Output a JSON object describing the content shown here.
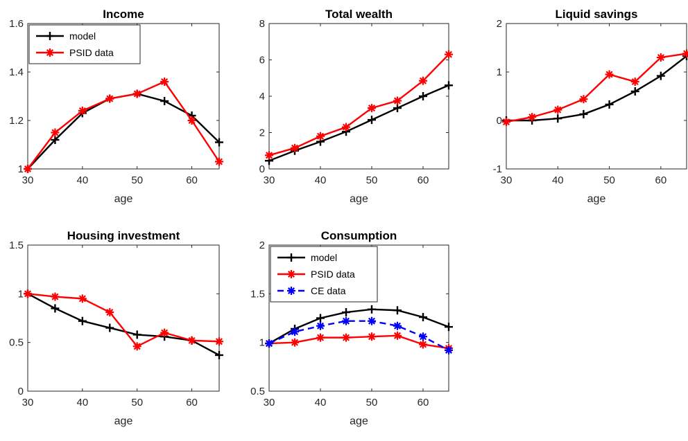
{
  "chart_data": [
    {
      "type": "line",
      "title": "Income",
      "xlabel": "age",
      "ylabel": "",
      "x": [
        30,
        35,
        40,
        45,
        50,
        55,
        60,
        65
      ],
      "xlim": [
        30,
        65
      ],
      "ylim": [
        1,
        1.6
      ],
      "xticks": [
        "30",
        "40",
        "50",
        "60"
      ],
      "yticks": [
        "1",
        "1.2",
        "1.4",
        "1.6"
      ],
      "legend": "top-left",
      "series": [
        {
          "name": "model",
          "color": "#000000",
          "marker": "plus",
          "dash": "solid",
          "values": [
            1.0,
            1.12,
            1.23,
            1.29,
            1.31,
            1.28,
            1.22,
            1.11
          ]
        },
        {
          "name": "PSID data",
          "color": "#ff0000",
          "marker": "star",
          "dash": "solid",
          "values": [
            1.0,
            1.15,
            1.24,
            1.29,
            1.31,
            1.36,
            1.2,
            1.03
          ]
        }
      ]
    },
    {
      "type": "line",
      "title": "Total wealth",
      "xlabel": "age",
      "ylabel": "",
      "x": [
        30,
        35,
        40,
        45,
        50,
        55,
        60,
        65
      ],
      "xlim": [
        30,
        65
      ],
      "ylim": [
        0,
        8
      ],
      "xticks": [
        "30",
        "40",
        "50",
        "60"
      ],
      "yticks": [
        "0",
        "2",
        "4",
        "6",
        "8"
      ],
      "legend": "none",
      "series": [
        {
          "color": "#000000",
          "marker": "plus",
          "dash": "solid",
          "values": [
            0.45,
            1.0,
            1.5,
            2.05,
            2.7,
            3.35,
            4.0,
            4.6
          ]
        },
        {
          "color": "#ff0000",
          "marker": "star",
          "dash": "solid",
          "values": [
            0.75,
            1.15,
            1.8,
            2.3,
            3.35,
            3.75,
            4.85,
            6.3
          ]
        }
      ]
    },
    {
      "type": "line",
      "title": "Liquid savings",
      "xlabel": "age",
      "ylabel": "",
      "x": [
        30,
        35,
        40,
        45,
        50,
        55,
        60,
        65
      ],
      "xlim": [
        30,
        65
      ],
      "ylim": [
        -1,
        2
      ],
      "xticks": [
        "30",
        "40",
        "50",
        "60"
      ],
      "yticks": [
        "-1",
        "0",
        "1",
        "2"
      ],
      "legend": "none",
      "series": [
        {
          "color": "#000000",
          "marker": "plus",
          "dash": "solid",
          "values": [
            0.0,
            0.0,
            0.04,
            0.13,
            0.33,
            0.6,
            0.92,
            1.33
          ]
        },
        {
          "color": "#ff0000",
          "marker": "star",
          "dash": "solid",
          "values": [
            -0.03,
            0.07,
            0.22,
            0.44,
            0.95,
            0.8,
            1.3,
            1.38
          ]
        }
      ]
    },
    {
      "type": "line",
      "title": "Housing investment",
      "xlabel": "age",
      "ylabel": "",
      "x": [
        30,
        35,
        40,
        45,
        50,
        55,
        60,
        65
      ],
      "xlim": [
        30,
        65
      ],
      "ylim": [
        0,
        1.5
      ],
      "xticks": [
        "30",
        "40",
        "50",
        "60"
      ],
      "yticks": [
        "0",
        "0.5",
        "1",
        "1.5"
      ],
      "legend": "none",
      "series": [
        {
          "color": "#000000",
          "marker": "plus",
          "dash": "solid",
          "values": [
            1.0,
            0.85,
            0.72,
            0.65,
            0.58,
            0.56,
            0.52,
            0.37
          ]
        },
        {
          "color": "#ff0000",
          "marker": "star",
          "dash": "solid",
          "values": [
            1.0,
            0.97,
            0.95,
            0.81,
            0.46,
            0.6,
            0.52,
            0.51
          ]
        }
      ]
    },
    {
      "type": "line",
      "title": "Consumption",
      "xlabel": "age",
      "ylabel": "",
      "x": [
        30,
        35,
        40,
        45,
        50,
        55,
        60,
        65
      ],
      "xlim": [
        30,
        65
      ],
      "ylim": [
        0.5,
        2
      ],
      "xticks": [
        "30",
        "40",
        "50",
        "60"
      ],
      "yticks": [
        "0.5",
        "1",
        "1.5",
        "2"
      ],
      "legend": "top-left",
      "series": [
        {
          "name": "model",
          "color": "#000000",
          "marker": "plus",
          "dash": "solid",
          "values": [
            0.99,
            1.14,
            1.25,
            1.31,
            1.34,
            1.33,
            1.26,
            1.16
          ]
        },
        {
          "name": "PSID data",
          "color": "#ff0000",
          "marker": "star",
          "dash": "solid",
          "values": [
            0.99,
            1.0,
            1.05,
            1.05,
            1.06,
            1.07,
            0.98,
            0.94
          ]
        },
        {
          "name": "CE data",
          "color": "#0000ff",
          "marker": "star",
          "dash": "dashed",
          "values": [
            0.99,
            1.11,
            1.17,
            1.22,
            1.22,
            1.17,
            1.06,
            0.92
          ]
        }
      ]
    }
  ]
}
